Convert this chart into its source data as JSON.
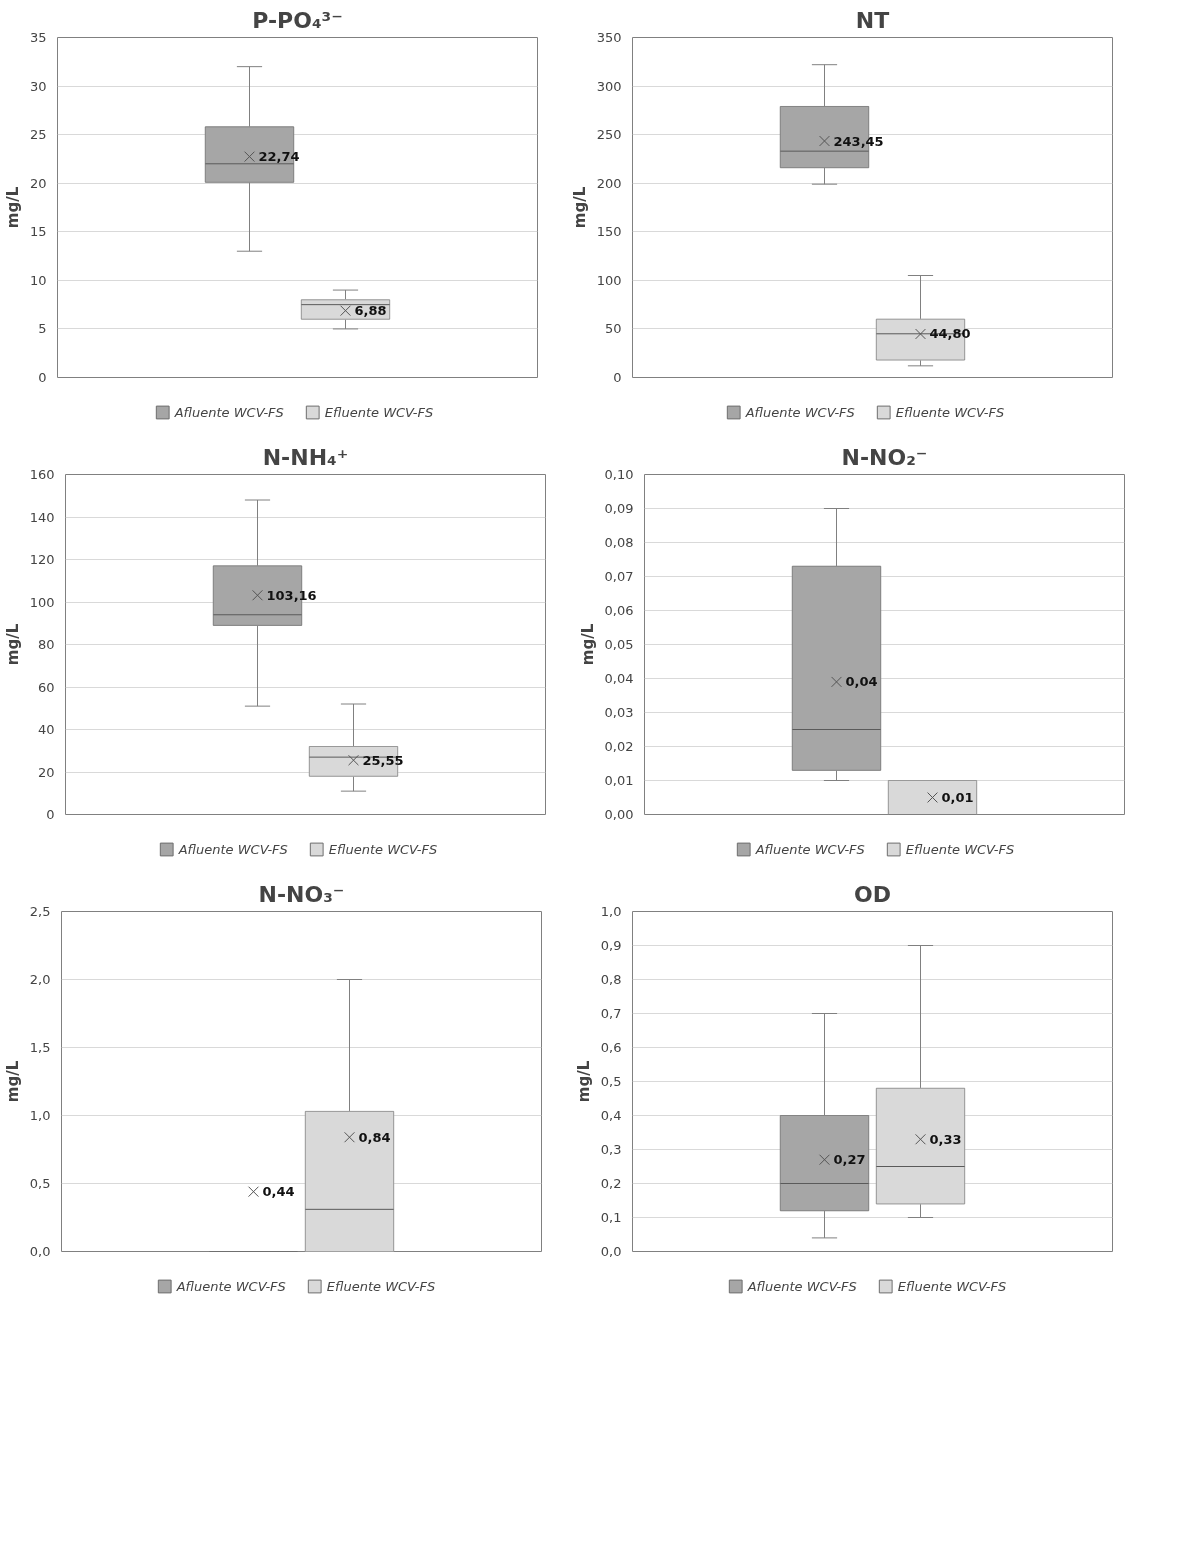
{
  "chart_data": [
    {
      "type": "box",
      "title": "P-PO₄³⁻",
      "ylabel": "mg/L",
      "categories": [
        null
      ],
      "ylim": [
        0,
        35
      ],
      "yticks": [
        0,
        5,
        10,
        15,
        20,
        25,
        30,
        35
      ],
      "grid": "y",
      "legend": "bottom",
      "series": [
        {
          "name": "Afluente WCV-FS",
          "color": "#a6a6a6",
          "boxes": [
            {
              "low": 13,
              "q1": 20.1,
              "median": 22,
              "q3": 25.8,
              "high": 32,
              "mean": 22.74
            }
          ],
          "value_labels": [
            "22,74"
          ]
        },
        {
          "name": "Efluente WCV-FS",
          "color": "#d9d9d9",
          "boxes": [
            {
              "low": 5,
              "q1": 6,
              "median": 7.5,
              "q3": 8,
              "high": 9,
              "mean": 6.88
            }
          ],
          "value_labels": [
            "6,88"
          ]
        }
      ]
    },
    {
      "type": "box",
      "title": "NT",
      "ylabel": "mg/L",
      "categories": [
        null
      ],
      "ylim": [
        0,
        350
      ],
      "yticks": [
        0,
        50,
        100,
        150,
        200,
        250,
        300,
        350
      ],
      "grid": "y",
      "legend": "bottom",
      "series": [
        {
          "name": "Afluente WCV-FS",
          "color": "#a6a6a6",
          "boxes": [
            {
              "low": 199,
              "q1": 216,
              "median": 233,
              "q3": 279,
              "high": 322,
              "mean": 243.45
            }
          ],
          "value_labels": [
            "243,45"
          ]
        },
        {
          "name": "Efluente WCV-FS",
          "color": "#d9d9d9",
          "boxes": [
            {
              "low": 12,
              "q1": 18,
              "median": 45,
              "q3": 60,
              "high": 105,
              "mean": 44.8
            }
          ],
          "value_labels": [
            "44,80"
          ]
        }
      ]
    },
    {
      "type": "box",
      "title": "N-NH₄⁺",
      "ylabel": "mg/L",
      "categories": [
        null
      ],
      "ylim": [
        0,
        160
      ],
      "yticks": [
        0,
        20,
        40,
        60,
        80,
        100,
        120,
        140,
        160
      ],
      "grid": "y",
      "legend": "bottom",
      "series": [
        {
          "name": "Afluente WCV-FS",
          "color": "#a6a6a6",
          "boxes": [
            {
              "low": 51,
              "q1": 89,
              "median": 94,
              "q3": 117,
              "high": 148,
              "mean": 103.16
            }
          ],
          "value_labels": [
            "103,16"
          ]
        },
        {
          "name": "Efluente WCV-FS",
          "color": "#d9d9d9",
          "boxes": [
            {
              "low": 11,
              "q1": 18,
              "median": 27,
              "q3": 32,
              "high": 52,
              "mean": 25.55
            }
          ],
          "value_labels": [
            "25,55"
          ]
        }
      ]
    },
    {
      "type": "box",
      "title": "N-NO₂⁻",
      "ylabel": "mg/L",
      "categories": [
        null
      ],
      "ylim": [
        0,
        0.1
      ],
      "yticks": [
        {
          "value": 0,
          "label": "0,00"
        },
        {
          "value": 0.01,
          "label": "0,01"
        },
        {
          "value": 0.02,
          "label": "0,02"
        },
        {
          "value": 0.03,
          "label": "0,03"
        },
        {
          "value": 0.04,
          "label": "0,04"
        },
        {
          "value": 0.05,
          "label": "0,05"
        },
        {
          "value": 0.06,
          "label": "0,06"
        },
        {
          "value": 0.07,
          "label": "0,07"
        },
        {
          "value": 0.08,
          "label": "0,08"
        },
        {
          "value": 0.09,
          "label": "0,09"
        },
        {
          "value": 0.1,
          "label": "0,10"
        }
      ],
      "grid": "y",
      "legend": "bottom",
      "series": [
        {
          "name": "Afluente WCV-FS",
          "color": "#a6a6a6",
          "boxes": [
            {
              "low": 0.01,
              "q1": 0.013,
              "median": 0.025,
              "q3": 0.073,
              "high": 0.09,
              "mean": 0.039
            }
          ],
          "value_labels": [
            "0,04"
          ]
        },
        {
          "name": "Efluente WCV-FS",
          "color": "#d9d9d9",
          "boxes": [
            {
              "low": 0,
              "q1": 0,
              "median": 0,
              "q3": 0.01,
              "high": 0.01,
              "mean": 0.005
            }
          ],
          "value_labels": [
            "0,01"
          ]
        }
      ]
    },
    {
      "type": "box",
      "title": "N-NO₃⁻",
      "ylabel": "mg/L",
      "categories": [
        null
      ],
      "ylim": [
        0,
        2.5
      ],
      "yticks": [
        {
          "value": 0,
          "label": "0,0"
        },
        {
          "value": 0.5,
          "label": "0,5"
        },
        {
          "value": 1,
          "label": "1,0"
        },
        {
          "value": 1.5,
          "label": "1,5"
        },
        {
          "value": 2,
          "label": "2,0"
        },
        {
          "value": 2.5,
          "label": "2,5"
        }
      ],
      "grid": "y",
      "legend": "bottom",
      "series": [
        {
          "name": "Afluente WCV-FS",
          "color": "#a6a6a6",
          "boxes": [
            {
              "low": 0,
              "q1": 0,
              "median": 0,
              "q3": 0,
              "high": 0,
              "mean": 0.44
            }
          ],
          "value_labels": [
            "0,44"
          ]
        },
        {
          "name": "Efluente WCV-FS",
          "color": "#d9d9d9",
          "boxes": [
            {
              "low": 0,
              "q1": 0,
              "median": 0.31,
              "q3": 1.03,
              "high": 2.0,
              "mean": 0.84
            }
          ],
          "value_labels": [
            "0,84"
          ]
        }
      ]
    },
    {
      "type": "box",
      "title": "OD",
      "ylabel": "mg/L",
      "categories": [
        null
      ],
      "ylim": [
        0,
        1
      ],
      "yticks": [
        {
          "value": 0,
          "label": "0,0"
        },
        {
          "value": 0.1,
          "label": "0,1"
        },
        {
          "value": 0.2,
          "label": "0,2"
        },
        {
          "value": 0.3,
          "label": "0,3"
        },
        {
          "value": 0.4,
          "label": "0,4"
        },
        {
          "value": 0.5,
          "label": "0,5"
        },
        {
          "value": 0.6,
          "label": "0,6"
        },
        {
          "value": 0.7,
          "label": "0,7"
        },
        {
          "value": 0.8,
          "label": "0,8"
        },
        {
          "value": 0.9,
          "label": "0,9"
        },
        {
          "value": 1,
          "label": "1,0"
        }
      ],
      "grid": "y",
      "legend": "bottom",
      "series": [
        {
          "name": "Afluente WCV-FS",
          "color": "#a6a6a6",
          "boxes": [
            {
              "low": 0.04,
              "q1": 0.12,
              "median": 0.2,
              "q3": 0.4,
              "high": 0.7,
              "mean": 0.27
            }
          ],
          "value_labels": [
            "0,27"
          ]
        },
        {
          "name": "Efluente WCV-FS",
          "color": "#d9d9d9",
          "boxes": [
            {
              "low": 0.1,
              "q1": 0.14,
              "median": 0.25,
              "q3": 0.48,
              "high": 0.9,
              "mean": 0.33
            }
          ],
          "value_labels": [
            "0,33"
          ]
        }
      ]
    }
  ]
}
